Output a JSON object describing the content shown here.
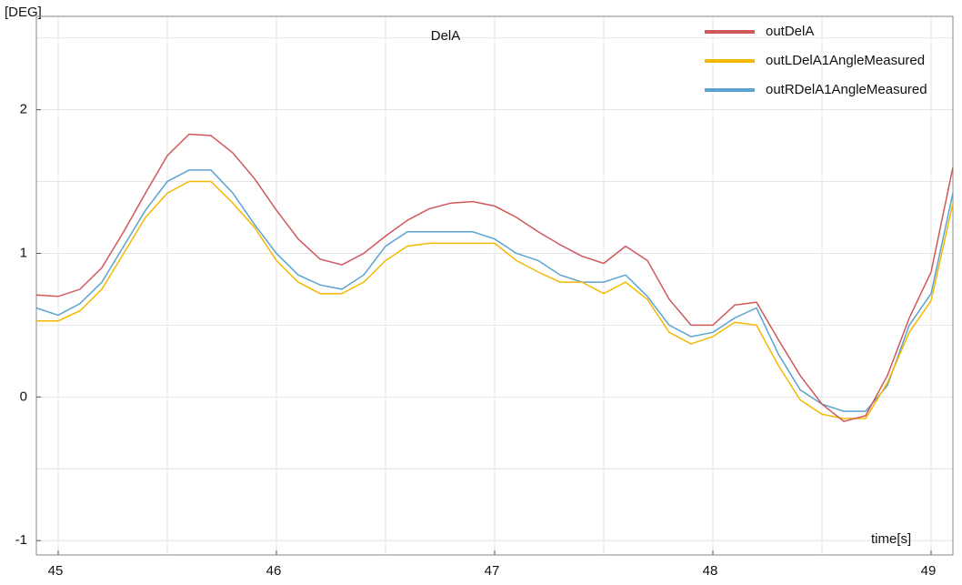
{
  "chart_data": {
    "type": "line",
    "title": "DelA",
    "y_label": "[DEG]",
    "x_label": "time[s]",
    "x": [
      44.9,
      45.0,
      45.1,
      45.2,
      45.3,
      45.4,
      45.5,
      45.6,
      45.7,
      45.8,
      45.9,
      46.0,
      46.1,
      46.2,
      46.3,
      46.4,
      46.5,
      46.6,
      46.7,
      46.8,
      46.9,
      47.0,
      47.1,
      47.2,
      47.3,
      47.4,
      47.5,
      47.6,
      47.7,
      47.8,
      47.9,
      48.0,
      48.1,
      48.2,
      48.3,
      48.4,
      48.5,
      48.6,
      48.7,
      48.8,
      48.9,
      49.0,
      49.1
    ],
    "series": [
      {
        "name": "outDelA",
        "color": "#d0585c",
        "values": [
          0.71,
          0.7,
          0.75,
          0.9,
          1.15,
          1.42,
          1.68,
          1.83,
          1.82,
          1.7,
          1.52,
          1.3,
          1.1,
          0.96,
          0.92,
          1.0,
          1.12,
          1.23,
          1.31,
          1.35,
          1.36,
          1.33,
          1.25,
          1.15,
          1.06,
          0.98,
          0.93,
          1.05,
          0.95,
          0.68,
          0.5,
          0.5,
          0.64,
          0.66,
          0.4,
          0.15,
          -0.05,
          -0.17,
          -0.13,
          0.15,
          0.55,
          0.87,
          1.6
        ]
      },
      {
        "name": "outLDelA1AngleMeasured",
        "color": "#f5b800",
        "values": [
          0.53,
          0.53,
          0.6,
          0.75,
          1.0,
          1.25,
          1.42,
          1.5,
          1.5,
          1.35,
          1.18,
          0.95,
          0.8,
          0.72,
          0.72,
          0.8,
          0.95,
          1.05,
          1.07,
          1.07,
          1.07,
          1.07,
          0.95,
          0.87,
          0.8,
          0.8,
          0.72,
          0.8,
          0.68,
          0.45,
          0.37,
          0.42,
          0.52,
          0.5,
          0.22,
          -0.02,
          -0.12,
          -0.15,
          -0.15,
          0.1,
          0.45,
          0.67,
          1.35
        ]
      },
      {
        "name": "outRDelA1AngleMeasured",
        "color": "#5ba3d0",
        "values": [
          0.62,
          0.57,
          0.65,
          0.8,
          1.05,
          1.3,
          1.5,
          1.58,
          1.58,
          1.42,
          1.2,
          1.0,
          0.85,
          0.78,
          0.75,
          0.85,
          1.05,
          1.15,
          1.15,
          1.15,
          1.15,
          1.1,
          1.0,
          0.95,
          0.85,
          0.8,
          0.8,
          0.85,
          0.7,
          0.5,
          0.42,
          0.45,
          0.55,
          0.62,
          0.3,
          0.05,
          -0.05,
          -0.1,
          -0.1,
          0.08,
          0.5,
          0.72,
          1.42
        ]
      }
    ],
    "xlim": [
      44.9,
      49.1
    ],
    "ylim": [
      -1.1,
      2.65
    ],
    "xticks": [
      45,
      46,
      47,
      48,
      49
    ],
    "yticks": [
      -1,
      0,
      1,
      2
    ],
    "minor_xticks": [
      45.5,
      46.5,
      47.5,
      48.5
    ],
    "minor_yticks": [
      -0.5,
      0.5,
      1.5,
      2.5
    ],
    "grid": true,
    "legend": "top-right"
  }
}
